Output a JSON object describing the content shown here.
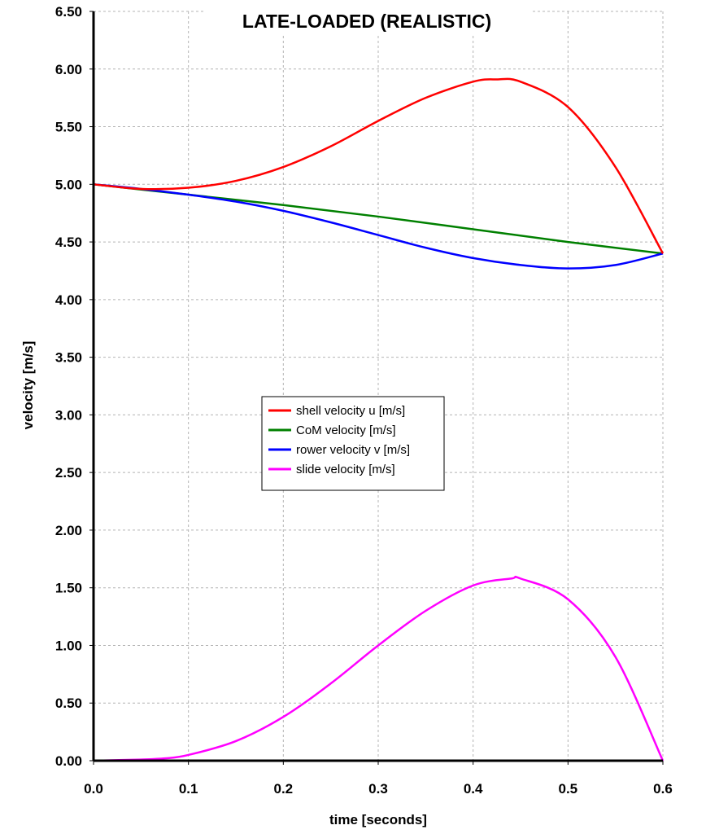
{
  "chart_data": {
    "type": "line",
    "title": "LATE-LOADED (REALISTIC)",
    "xlabel": "time [seconds]",
    "ylabel": "velocity [m/s]",
    "xlim": [
      0,
      0.6
    ],
    "ylim": [
      0,
      6.5
    ],
    "x_ticks": [
      "0.0",
      "0.1",
      "0.2",
      "0.3",
      "0.4",
      "0.5",
      "0.6"
    ],
    "y_ticks": [
      "0.00",
      "0.50",
      "1.00",
      "1.50",
      "2.00",
      "2.50",
      "3.00",
      "3.50",
      "4.00",
      "4.50",
      "5.00",
      "5.50",
      "6.00",
      "6.50"
    ],
    "grid": true,
    "legend_position": "center",
    "series": [
      {
        "name": "shell velocity u [m/s]",
        "color": "#ff0000",
        "x": [
          0,
          0.05,
          0.1,
          0.15,
          0.2,
          0.25,
          0.3,
          0.35,
          0.4,
          0.425,
          0.45,
          0.5,
          0.55,
          0.6
        ],
        "y": [
          5.0,
          4.96,
          4.97,
          5.03,
          5.15,
          5.33,
          5.55,
          5.75,
          5.89,
          5.91,
          5.89,
          5.67,
          5.15,
          4.4
        ]
      },
      {
        "name": "CoM velocity [m/s]",
        "color": "#008000",
        "x": [
          0,
          0.1,
          0.2,
          0.3,
          0.4,
          0.5,
          0.6
        ],
        "y": [
          5.0,
          4.91,
          4.82,
          4.72,
          4.61,
          4.5,
          4.4
        ]
      },
      {
        "name": "rower velocity v [m/s]",
        "color": "#0000ff",
        "x": [
          0,
          0.05,
          0.1,
          0.15,
          0.2,
          0.25,
          0.3,
          0.35,
          0.4,
          0.45,
          0.5,
          0.55,
          0.6
        ],
        "y": [
          5.0,
          4.96,
          4.91,
          4.85,
          4.77,
          4.67,
          4.56,
          4.45,
          4.36,
          4.3,
          4.27,
          4.3,
          4.4
        ]
      },
      {
        "name": "slide velocity [m/s]",
        "color": "#ff00ff",
        "x": [
          0,
          0.05,
          0.075,
          0.1,
          0.15,
          0.2,
          0.25,
          0.3,
          0.35,
          0.4,
          0.44,
          0.45,
          0.5,
          0.55,
          0.6
        ],
        "y": [
          0,
          0.01,
          0.02,
          0.05,
          0.17,
          0.38,
          0.67,
          1.0,
          1.3,
          1.52,
          1.58,
          1.58,
          1.4,
          0.9,
          0.0
        ]
      }
    ]
  }
}
